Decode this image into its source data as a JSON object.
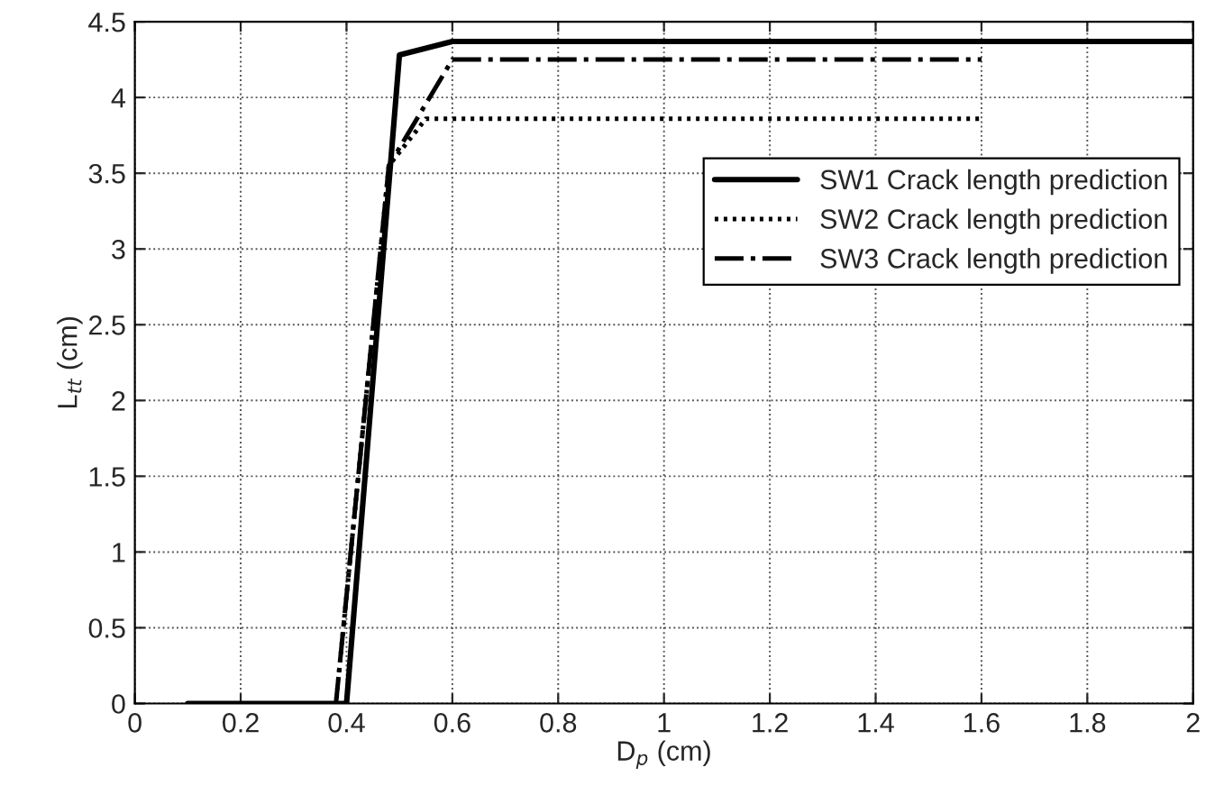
{
  "chart_data": {
    "type": "line",
    "xlabel": "D$_{p}$ (cm)",
    "ylabel": "L$_{tt}$ (cm)",
    "xlim": [
      0,
      2
    ],
    "ylim": [
      0,
      4.5
    ],
    "xticks": [
      0,
      0.2,
      0.4,
      0.6,
      0.8,
      1,
      1.2,
      1.4,
      1.6,
      1.8,
      2
    ],
    "yticks": [
      0,
      0.5,
      1,
      1.5,
      2,
      2.5,
      3,
      3.5,
      4,
      4.5
    ],
    "grid": true,
    "legend": "top right",
    "series": [
      {
        "name": "SW1 Crack length prediction",
        "color": "#000000",
        "line_style": "solid",
        "x": [
          0.1,
          0.4,
          0.5,
          0.6,
          2
        ],
        "values": [
          0,
          0,
          4.28,
          4.37,
          4.37
        ]
      },
      {
        "name": "SW2 Crack length prediction",
        "color": "#000000",
        "line_style": "dotted",
        "x": [
          0.1,
          0.38,
          0.48,
          0.55,
          1.6
        ],
        "values": [
          0,
          0,
          3.55,
          3.86,
          3.86
        ]
      },
      {
        "name": "SW3 Crack length prediction",
        "color": "#000000",
        "line_style": "dashdot",
        "x": [
          0.1,
          0.38,
          0.48,
          0.6,
          1.6
        ],
        "values": [
          0,
          0,
          3.55,
          4.25,
          4.25
        ]
      }
    ]
  }
}
